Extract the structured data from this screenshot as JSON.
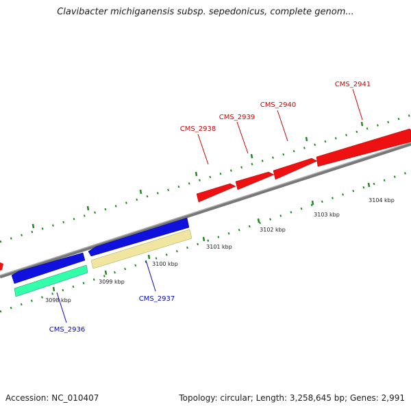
{
  "title": "Clavibacter michiganensis subsp. sepedonicus, complete genom...",
  "footer": {
    "accession": "Accession: NC_010407",
    "summary": "Topology: circular; Length: 3,258,645 bp; Genes: 2,991"
  },
  "ticks": [
    "3098 kbp",
    "3099 kbp",
    "3100 kbp",
    "3101 kbp",
    "3102 kbp",
    "3103 kbp",
    "3104 kbp"
  ],
  "genes": {
    "forward": [
      "CMS_2938",
      "CMS_2939",
      "CMS_2940",
      "CMS_2941"
    ],
    "reverse": [
      "CMS_2936",
      "CMS_2937"
    ]
  },
  "colors": {
    "cds_forward": "#ee1111",
    "cds_reverse": "#1111dd",
    "orf_green": "#33ffaa",
    "orf_yellow": "#f0e6a0",
    "backbone": "#888888",
    "tick_green": "#228822",
    "label_red": "#cc0000",
    "label_blue": "#0000cc"
  }
}
